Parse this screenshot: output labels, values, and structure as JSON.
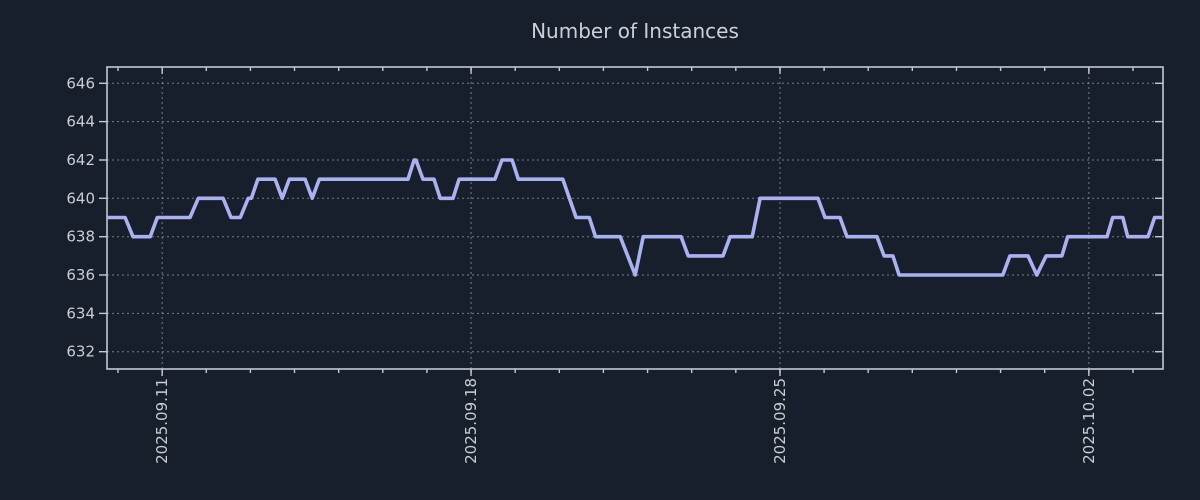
{
  "page": {
    "background_color": "#161f2b"
  },
  "chart_data": {
    "type": "line",
    "title": "Number of Instances",
    "colors": {
      "background": "#161f2b",
      "line": "#aab1f0",
      "grid": "#aeb6c0",
      "axis": "#c3c9d2",
      "text": "#c9ced4"
    },
    "x_axis": {
      "unit": "days (0 = 2025.09.11 major tick)",
      "range": [
        -1.25,
        22.68
      ],
      "major_ticks": [
        {
          "d": 0,
          "label": "2025.09.11"
        },
        {
          "d": 7,
          "label": "2025.09.18"
        },
        {
          "d": 14,
          "label": "2025.09.25"
        },
        {
          "d": 21,
          "label": "2025.10.02"
        }
      ],
      "minor_tick_start": -1,
      "minor_tick_step": 1,
      "minor_tick_end": 22
    },
    "y_axis": {
      "range": [
        631.1,
        646.85
      ],
      "ticks": [
        632,
        634,
        636,
        638,
        640,
        642,
        644,
        646
      ]
    },
    "grid": {
      "horizontal": true,
      "vertical_on_major_only": true
    },
    "legend": "none",
    "series": [
      {
        "name": "instances",
        "color": "#aab1f0",
        "points": [
          [
            -1.25,
            639
          ],
          [
            -0.84,
            639
          ],
          [
            -0.66,
            638
          ],
          [
            -0.27,
            638
          ],
          [
            -0.11,
            639
          ],
          [
            0.63,
            639
          ],
          [
            0.82,
            640
          ],
          [
            1.38,
            640
          ],
          [
            1.56,
            639
          ],
          [
            1.77,
            639
          ],
          [
            1.95,
            640
          ],
          [
            2.02,
            640
          ],
          [
            2.17,
            641
          ],
          [
            2.56,
            641
          ],
          [
            2.72,
            640
          ],
          [
            2.88,
            641
          ],
          [
            3.24,
            641
          ],
          [
            3.4,
            640
          ],
          [
            3.56,
            641
          ],
          [
            5.57,
            641
          ],
          [
            5.71,
            642
          ],
          [
            5.75,
            642
          ],
          [
            5.91,
            641
          ],
          [
            6.16,
            641
          ],
          [
            6.3,
            640
          ],
          [
            6.59,
            640
          ],
          [
            6.73,
            641
          ],
          [
            7.54,
            641
          ],
          [
            7.7,
            642
          ],
          [
            7.93,
            642
          ],
          [
            8.07,
            641
          ],
          [
            9.08,
            641
          ],
          [
            9.38,
            639
          ],
          [
            9.68,
            639
          ],
          [
            9.82,
            638
          ],
          [
            10.38,
            638
          ],
          [
            10.72,
            636
          ],
          [
            10.9,
            638
          ],
          [
            11.76,
            638
          ],
          [
            11.92,
            637
          ],
          [
            12.71,
            637
          ],
          [
            12.87,
            638
          ],
          [
            13.37,
            638
          ],
          [
            13.55,
            640
          ],
          [
            14.86,
            640
          ],
          [
            15.02,
            639
          ],
          [
            15.36,
            639
          ],
          [
            15.52,
            638
          ],
          [
            16.2,
            638
          ],
          [
            16.36,
            637
          ],
          [
            16.56,
            637
          ],
          [
            16.7,
            636
          ],
          [
            19.05,
            636
          ],
          [
            19.21,
            637
          ],
          [
            19.62,
            637
          ],
          [
            19.82,
            636
          ],
          [
            20.03,
            637
          ],
          [
            20.39,
            637
          ],
          [
            20.52,
            638
          ],
          [
            21.41,
            638
          ],
          [
            21.54,
            639
          ],
          [
            21.77,
            639
          ],
          [
            21.88,
            638
          ],
          [
            22.34,
            638
          ],
          [
            22.49,
            639
          ],
          [
            22.68,
            639
          ]
        ]
      }
    ]
  }
}
